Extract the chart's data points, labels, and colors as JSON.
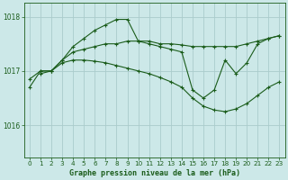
{
  "background_color": "#cce8e8",
  "grid_color": "#aacccc",
  "line_color": "#1a5c1a",
  "marker_color": "#1a5c1a",
  "title": "Graphe pression niveau de la mer (hPa)",
  "xlim": [
    -0.5,
    23.5
  ],
  "ylim": [
    1015.4,
    1018.25
  ],
  "yticks": [
    1016,
    1017,
    1018
  ],
  "xticks": [
    0,
    1,
    2,
    3,
    4,
    5,
    6,
    7,
    8,
    9,
    10,
    11,
    12,
    13,
    14,
    15,
    16,
    17,
    18,
    19,
    20,
    21,
    22,
    23
  ],
  "series": [
    {
      "x": [
        1,
        2,
        3,
        4,
        5,
        6,
        7,
        8,
        9,
        10,
        11,
        12,
        13,
        14,
        15,
        16,
        17,
        18,
        19,
        20,
        21,
        22,
        23
      ],
      "y": [
        1016.95,
        1017.0,
        1017.2,
        1017.45,
        1017.6,
        1017.75,
        1017.85,
        1017.95,
        1017.95,
        1017.55,
        1017.5,
        1017.45,
        1017.4,
        1017.35,
        1016.65,
        1016.5,
        1016.65,
        1017.2,
        1016.95,
        1017.15,
        1017.5,
        1017.6,
        1017.65
      ]
    },
    {
      "x": [
        0,
        1,
        2,
        3,
        4,
        5,
        6,
        7,
        8,
        9,
        10,
        11,
        12,
        13,
        14,
        15,
        16,
        17,
        18,
        19,
        20,
        21,
        22,
        23
      ],
      "y": [
        1016.85,
        1017.0,
        1017.0,
        1017.2,
        1017.35,
        1017.4,
        1017.45,
        1017.5,
        1017.5,
        1017.55,
        1017.55,
        1017.55,
        1017.5,
        1017.5,
        1017.48,
        1017.45,
        1017.45,
        1017.45,
        1017.45,
        1017.45,
        1017.5,
        1017.55,
        1017.6,
        1017.65
      ]
    },
    {
      "x": [
        0,
        1,
        2,
        3,
        4,
        5,
        6,
        7,
        8,
        9,
        10,
        11,
        12,
        13,
        14,
        15,
        16,
        17,
        18,
        19,
        20,
        21,
        22,
        23
      ],
      "y": [
        1016.7,
        1017.0,
        1017.0,
        1017.15,
        1017.2,
        1017.2,
        1017.18,
        1017.15,
        1017.1,
        1017.05,
        1017.0,
        1016.95,
        1016.88,
        1016.8,
        1016.7,
        1016.5,
        1016.35,
        1016.28,
        1016.25,
        1016.3,
        1016.4,
        1016.55,
        1016.7,
        1016.8
      ]
    }
  ]
}
